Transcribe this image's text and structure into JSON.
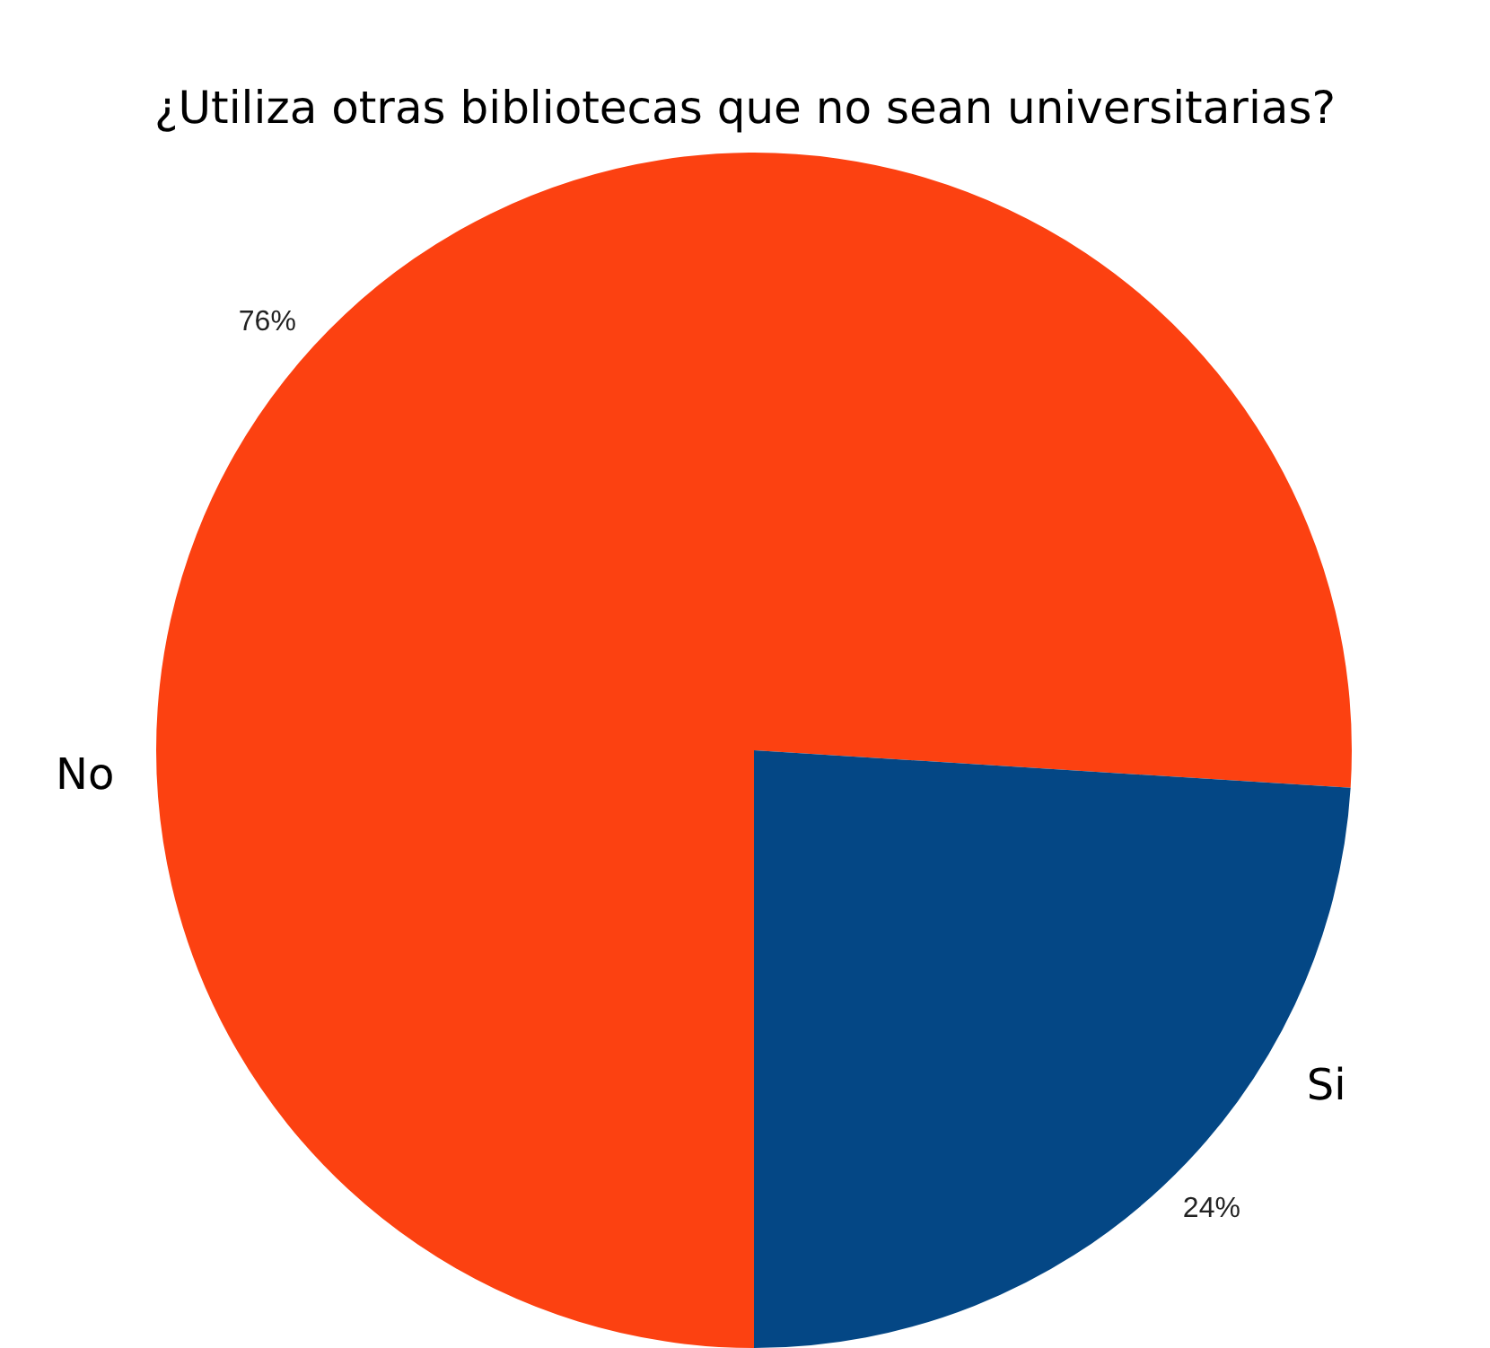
{
  "chart_data": {
    "type": "pie",
    "title": "¿Utiliza otras bibliotecas que no sean universitarias?",
    "categories": [
      "No",
      "Si"
    ],
    "values": [
      76,
      24
    ],
    "value_labels": [
      "76%",
      "24%"
    ],
    "colors": [
      "#fc4111",
      "#044785"
    ],
    "legend": false
  }
}
